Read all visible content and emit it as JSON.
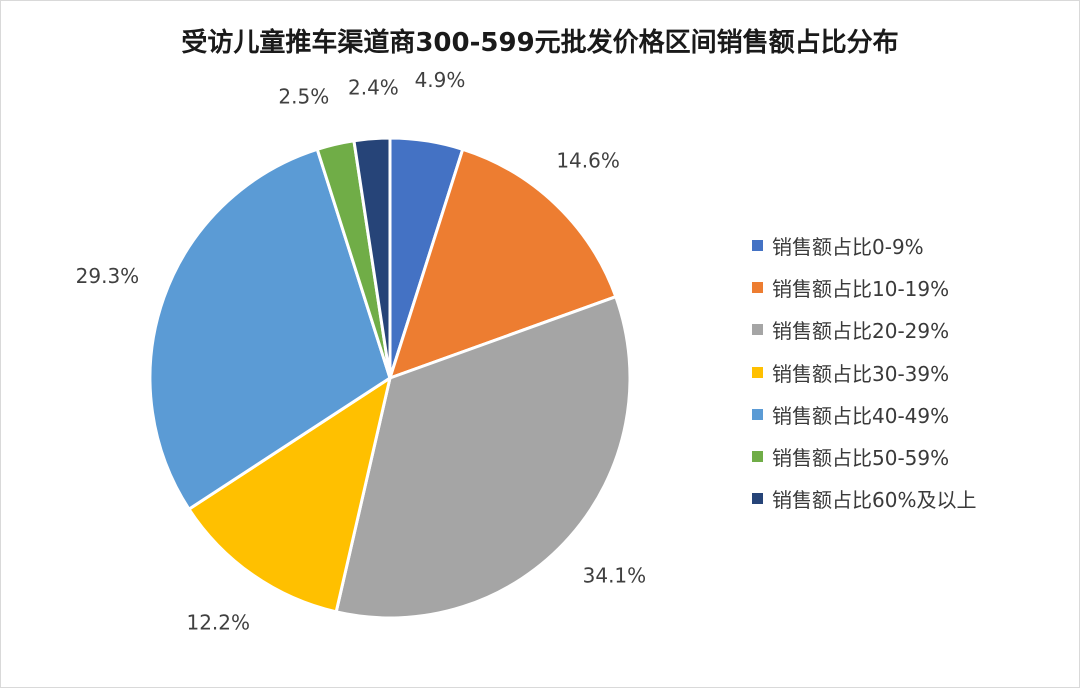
{
  "chart_data": {
    "type": "pie",
    "title": "受访儿童推车渠道商300-599元批发价格区间销售额占比分布",
    "slices": [
      {
        "label": "销售额占比0-9%",
        "value": 4.9,
        "display": "4.9%",
        "color": "#4472C4"
      },
      {
        "label": "销售额占比10-19%",
        "value": 14.6,
        "display": "14.6%",
        "color": "#ED7D31"
      },
      {
        "label": "销售额占比20-29%",
        "value": 34.1,
        "display": "34.1%",
        "color": "#A5A5A5"
      },
      {
        "label": "销售额占比30-39%",
        "value": 12.2,
        "display": "12.2%",
        "color": "#FFC000"
      },
      {
        "label": "销售额占比40-49%",
        "value": 29.3,
        "display": "29.3%",
        "color": "#5B9BD5"
      },
      {
        "label": "销售额占比50-59%",
        "value": 2.5,
        "display": "2.5%",
        "color": "#70AD47"
      },
      {
        "label": "销售额占比60%及以上",
        "value": 2.4,
        "display": "2.4%",
        "color": "#264478"
      }
    ],
    "legend_position": "right"
  }
}
